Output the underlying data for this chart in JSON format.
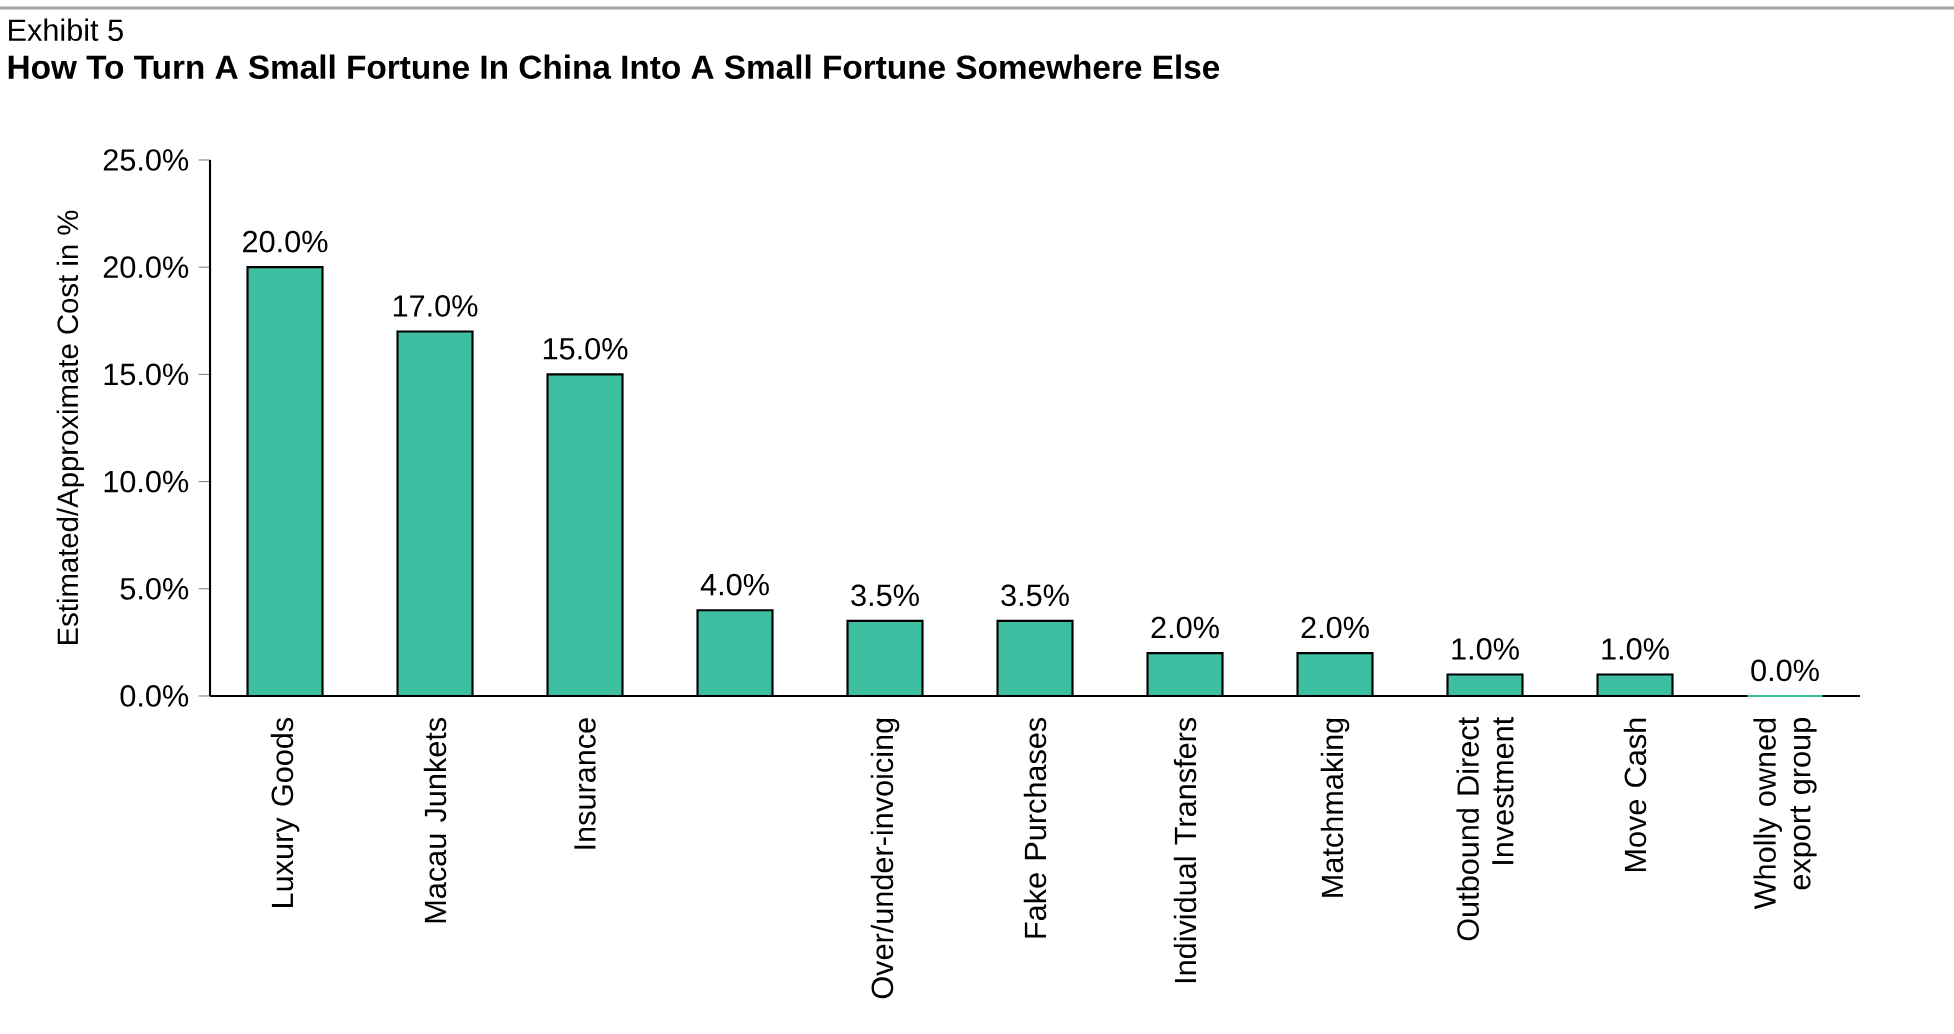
{
  "chart_data": {
    "type": "bar",
    "title": "How To Turn A Small Fortune In China Into A Small Fortune Somewhere Else",
    "annotations": [
      "Exhibit 5"
    ],
    "ylabel": "Estimated/Approximate Cost in %",
    "categories": [
      "Luxury Goods",
      "Macau Junkets",
      "Insurance",
      null,
      "Over/under-invoicing",
      "Fake Purchases",
      "Individual Transfers",
      "Matchmaking",
      "Outbound Direct Investment",
      "Move Cash",
      "Wholly owned export group"
    ],
    "values": [
      20.0,
      17.0,
      15.0,
      4.0,
      3.5,
      3.5,
      2.0,
      2.0,
      1.0,
      1.0,
      0.0
    ],
    "value_labels": [
      "20.0%",
      "17.0%",
      "15.0%",
      "4.0%",
      "3.5%",
      "3.5%",
      "2.0%",
      "2.0%",
      "1.0%",
      "1.0%",
      "0.0%"
    ],
    "color": "#3ebfa2",
    "ylim": [
      0,
      25
    ],
    "yticks": [
      {
        "value": 0,
        "label": "0.0%"
      },
      {
        "value": 5,
        "label": "5.0%"
      },
      {
        "value": 10,
        "label": "10.0%"
      },
      {
        "value": 15,
        "label": "15.0%"
      },
      {
        "value": 20,
        "label": "20.0%"
      },
      {
        "value": 25,
        "label": "25.0%"
      }
    ],
    "grid": false
  }
}
